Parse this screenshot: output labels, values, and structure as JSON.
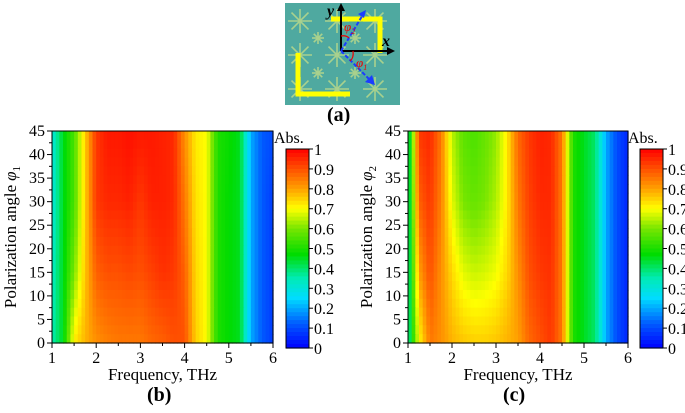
{
  "panel_labels": {
    "a": "(a)",
    "b": "(b)",
    "c": "(c)"
  },
  "inset": {
    "x_axis": "x",
    "y_axis": "y",
    "phi1": "φ",
    "phi1_sub": "1",
    "phi2": "φ",
    "phi2_sub": "2",
    "background_color": "#4fa9a0",
    "bar_color": "#ffff00",
    "arrow_color": "#1a3cff"
  },
  "chart_data": [
    {
      "type": "heatmap",
      "panel": "(b)",
      "xlabel": "Frequency, THz",
      "ylabel": "Polarization angle",
      "ylabel_symbol": "φ",
      "ylabel_sub": "1",
      "colorbar_title": "Abs.",
      "xlim": [
        1,
        6
      ],
      "ylim": [
        0,
        45
      ],
      "clim": [
        0,
        1
      ],
      "xticks": [
        "1",
        "2",
        "3",
        "4",
        "5",
        "6"
      ],
      "yticks": [
        "0",
        "5",
        "10",
        "15",
        "20",
        "25",
        "30",
        "35",
        "40",
        "45"
      ],
      "cticks": [
        "0",
        "0.1",
        "0.2",
        "0.3",
        "0.4",
        "0.5",
        "0.6",
        "0.7",
        "0.8",
        "0.9",
        "1"
      ],
      "x": [
        1,
        1.25,
        1.5,
        1.75,
        2,
        2.25,
        2.5,
        2.75,
        3,
        3.25,
        3.5,
        3.75,
        4,
        4.25,
        4.5,
        4.75,
        5,
        5.25,
        5.5,
        5.75,
        6
      ],
      "y": [
        0,
        15,
        30,
        45
      ],
      "z": [
        [
          0.35,
          0.45,
          0.72,
          0.78,
          0.82,
          0.84,
          0.85,
          0.85,
          0.85,
          0.87,
          0.88,
          0.9,
          0.9,
          0.75,
          0.7,
          0.5,
          0.47,
          0.45,
          0.2,
          0.12,
          0.08
        ],
        [
          0.33,
          0.45,
          0.6,
          0.76,
          0.88,
          0.9,
          0.9,
          0.91,
          0.9,
          0.92,
          0.94,
          0.93,
          0.88,
          0.74,
          0.7,
          0.5,
          0.47,
          0.45,
          0.2,
          0.12,
          0.08
        ],
        [
          0.3,
          0.45,
          0.55,
          0.75,
          0.93,
          0.95,
          0.95,
          0.96,
          0.93,
          0.96,
          0.96,
          0.95,
          0.85,
          0.73,
          0.7,
          0.5,
          0.47,
          0.45,
          0.2,
          0.12,
          0.08
        ],
        [
          0.3,
          0.45,
          0.55,
          0.75,
          0.93,
          0.97,
          0.97,
          0.98,
          0.97,
          0.97,
          0.96,
          0.95,
          0.82,
          0.72,
          0.7,
          0.5,
          0.48,
          0.45,
          0.2,
          0.12,
          0.1
        ]
      ]
    },
    {
      "type": "heatmap",
      "panel": "(c)",
      "xlabel": "Frequency, THz",
      "ylabel": "Polarization angle",
      "ylabel_symbol": "φ",
      "ylabel_sub": "2",
      "colorbar_title": "Abs.",
      "xlim": [
        1,
        6
      ],
      "ylim": [
        0,
        45
      ],
      "clim": [
        0,
        1
      ],
      "xticks": [
        "1",
        "2",
        "3",
        "4",
        "5",
        "6"
      ],
      "yticks": [
        "0",
        "5",
        "10",
        "15",
        "20",
        "25",
        "30",
        "35",
        "40",
        "45"
      ],
      "cticks": [
        "0",
        "0.1",
        "0.2",
        "0.3",
        "0.4",
        "0.5",
        "0.6",
        "0.7",
        "0.8",
        "0.9",
        "1"
      ],
      "x": [
        1,
        1.25,
        1.5,
        1.75,
        2,
        2.25,
        2.5,
        2.75,
        3,
        3.25,
        3.5,
        3.75,
        4,
        4.25,
        4.5,
        4.75,
        5,
        5.25,
        5.5,
        5.75,
        6
      ],
      "y": [
        0,
        15,
        30,
        45
      ],
      "z": [
        [
          0.35,
          0.7,
          0.85,
          0.82,
          0.78,
          0.76,
          0.75,
          0.75,
          0.76,
          0.78,
          0.8,
          0.87,
          0.9,
          0.93,
          0.85,
          0.5,
          0.45,
          0.4,
          0.2,
          0.1,
          0.05
        ],
        [
          0.35,
          0.8,
          0.9,
          0.82,
          0.74,
          0.68,
          0.66,
          0.67,
          0.69,
          0.74,
          0.82,
          0.9,
          0.93,
          0.94,
          0.85,
          0.5,
          0.45,
          0.4,
          0.2,
          0.1,
          0.05
        ],
        [
          0.35,
          0.88,
          0.93,
          0.84,
          0.68,
          0.6,
          0.58,
          0.6,
          0.64,
          0.72,
          0.85,
          0.92,
          0.95,
          0.95,
          0.85,
          0.5,
          0.45,
          0.4,
          0.2,
          0.1,
          0.05
        ],
        [
          0.35,
          0.93,
          0.95,
          0.85,
          0.65,
          0.57,
          0.55,
          0.58,
          0.62,
          0.72,
          0.87,
          0.93,
          0.96,
          0.95,
          0.85,
          0.5,
          0.45,
          0.4,
          0.2,
          0.1,
          0.05
        ]
      ]
    }
  ]
}
